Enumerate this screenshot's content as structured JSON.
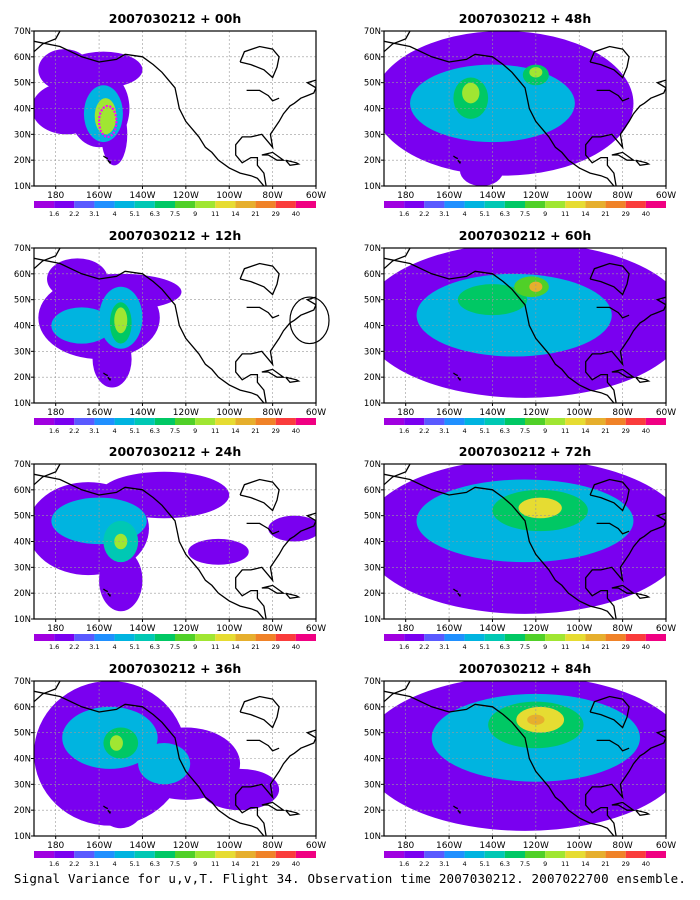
{
  "figure": {
    "caption": "Signal Variance for u,v,T. Flight 34. Observation time 2007030212. 2007022700 ensemble."
  },
  "panels": [
    {
      "title": "2007030212 + 00h",
      "blobs": [
        {
          "lon": -175,
          "lat": 40,
          "lvl": 1,
          "rx": 16,
          "ry": 10
        },
        {
          "lon": -160,
          "lat": 40,
          "lvl": 1,
          "rx": 14,
          "ry": 15
        },
        {
          "lon": -158,
          "lat": 55,
          "lvl": 1,
          "rx": 18,
          "ry": 7
        },
        {
          "lon": -176,
          "lat": 55,
          "lvl": 1,
          "rx": 12,
          "ry": 8
        },
        {
          "lon": -153,
          "lat": 30,
          "lvl": 1,
          "rx": 6,
          "ry": 12
        },
        {
          "lon": -158,
          "lat": 38,
          "lvl": 4,
          "rx": 9,
          "ry": 11
        },
        {
          "lon": -157,
          "lat": 37,
          "lvl": 8,
          "rx": 5,
          "ry": 7
        }
      ],
      "marker": {
        "type": "ellipse",
        "lon": -156,
        "lat": 35,
        "rx": 4,
        "ry": 6,
        "color": "#ff00ff",
        "dashed": true
      }
    },
    {
      "title": "2007030212 + 12h",
      "blobs": [
        {
          "lon": -160,
          "lat": 43,
          "lvl": 1,
          "rx": 28,
          "ry": 16
        },
        {
          "lon": -150,
          "lat": 53,
          "lvl": 1,
          "rx": 28,
          "ry": 7
        },
        {
          "lon": -154,
          "lat": 27,
          "lvl": 1,
          "rx": 9,
          "ry": 11
        },
        {
          "lon": -170,
          "lat": 58,
          "lvl": 1,
          "rx": 14,
          "ry": 8
        },
        {
          "lon": -168,
          "lat": 40,
          "lvl": 4,
          "rx": 14,
          "ry": 7
        },
        {
          "lon": -150,
          "lat": 43,
          "lvl": 4,
          "rx": 10,
          "ry": 12
        },
        {
          "lon": -150,
          "lat": 41,
          "lvl": 6,
          "rx": 5,
          "ry": 8
        },
        {
          "lon": -150,
          "lat": 42,
          "lvl": 8,
          "rx": 3,
          "ry": 5
        }
      ],
      "marker": {
        "type": "circle",
        "lon": -63,
        "lat": 42,
        "rx": 9,
        "ry": 9,
        "color": "#000000",
        "dashed": false
      }
    },
    {
      "title": "2007030212 + 24h",
      "blobs": [
        {
          "lon": -165,
          "lat": 45,
          "lvl": 1,
          "rx": 28,
          "ry": 18
        },
        {
          "lon": -130,
          "lat": 58,
          "lvl": 1,
          "rx": 30,
          "ry": 9
        },
        {
          "lon": -150,
          "lat": 25,
          "lvl": 1,
          "rx": 10,
          "ry": 12
        },
        {
          "lon": -70,
          "lat": 45,
          "lvl": 1,
          "rx": 12,
          "ry": 5
        },
        {
          "lon": -105,
          "lat": 36,
          "lvl": 1,
          "rx": 14,
          "ry": 5
        },
        {
          "lon": -160,
          "lat": 48,
          "lvl": 4,
          "rx": 22,
          "ry": 9
        },
        {
          "lon": -150,
          "lat": 40,
          "lvl": 5,
          "rx": 8,
          "ry": 8
        },
        {
          "lon": -150,
          "lat": 40,
          "lvl": 8,
          "rx": 3,
          "ry": 3
        }
      ],
      "marker": null
    },
    {
      "title": "2007030212 + 36h",
      "blobs": [
        {
          "lon": -155,
          "lat": 42,
          "lvl": 1,
          "rx": 35,
          "ry": 28
        },
        {
          "lon": -120,
          "lat": 38,
          "lvl": 1,
          "rx": 25,
          "ry": 14
        },
        {
          "lon": -95,
          "lat": 28,
          "lvl": 1,
          "rx": 18,
          "ry": 8
        },
        {
          "lon": -150,
          "lat": 25,
          "lvl": 1,
          "rx": 12,
          "ry": 12
        },
        {
          "lon": -155,
          "lat": 48,
          "lvl": 4,
          "rx": 22,
          "ry": 12
        },
        {
          "lon": -130,
          "lat": 38,
          "lvl": 4,
          "rx": 12,
          "ry": 8
        },
        {
          "lon": -150,
          "lat": 46,
          "lvl": 6,
          "rx": 8,
          "ry": 6
        },
        {
          "lon": -152,
          "lat": 46,
          "lvl": 8,
          "rx": 3,
          "ry": 3
        }
      ],
      "marker": null
    },
    {
      "title": "2007030212 + 48h",
      "blobs": [
        {
          "lon": -135,
          "lat": 42,
          "lvl": 1,
          "rx": 60,
          "ry": 28
        },
        {
          "lon": -145,
          "lat": 16,
          "lvl": 1,
          "rx": 10,
          "ry": 6
        },
        {
          "lon": -140,
          "lat": 42,
          "lvl": 4,
          "rx": 38,
          "ry": 15
        },
        {
          "lon": -150,
          "lat": 44,
          "lvl": 6,
          "rx": 8,
          "ry": 8
        },
        {
          "lon": -120,
          "lat": 53,
          "lvl": 6,
          "rx": 6,
          "ry": 4
        },
        {
          "lon": -150,
          "lat": 46,
          "lvl": 8,
          "rx": 4,
          "ry": 4
        },
        {
          "lon": -120,
          "lat": 54,
          "lvl": 8,
          "rx": 3,
          "ry": 2
        }
      ],
      "marker": null
    },
    {
      "title": "2007030212 + 60h",
      "blobs": [
        {
          "lon": -125,
          "lat": 42,
          "lvl": 1,
          "rx": 75,
          "ry": 30
        },
        {
          "lon": -130,
          "lat": 44,
          "lvl": 4,
          "rx": 45,
          "ry": 16
        },
        {
          "lon": -140,
          "lat": 50,
          "lvl": 6,
          "rx": 16,
          "ry": 6
        },
        {
          "lon": -122,
          "lat": 55,
          "lvl": 7,
          "rx": 8,
          "ry": 4
        },
        {
          "lon": -120,
          "lat": 55,
          "lvl": 10,
          "rx": 3,
          "ry": 2
        }
      ],
      "marker": null
    },
    {
      "title": "2007030212 + 72h",
      "blobs": [
        {
          "lon": -125,
          "lat": 42,
          "lvl": 1,
          "rx": 75,
          "ry": 30
        },
        {
          "lon": -125,
          "lat": 48,
          "lvl": 4,
          "rx": 50,
          "ry": 16
        },
        {
          "lon": -118,
          "lat": 52,
          "lvl": 6,
          "rx": 22,
          "ry": 8
        },
        {
          "lon": -118,
          "lat": 53,
          "lvl": 9,
          "rx": 10,
          "ry": 4
        }
      ],
      "marker": null
    },
    {
      "title": "2007030212 + 84h",
      "blobs": [
        {
          "lon": -125,
          "lat": 42,
          "lvl": 1,
          "rx": 75,
          "ry": 30
        },
        {
          "lon": -120,
          "lat": 48,
          "lvl": 4,
          "rx": 48,
          "ry": 17
        },
        {
          "lon": -120,
          "lat": 53,
          "lvl": 6,
          "rx": 22,
          "ry": 9
        },
        {
          "lon": -118,
          "lat": 55,
          "lvl": 9,
          "rx": 11,
          "ry": 5
        },
        {
          "lon": -120,
          "lat": 55,
          "lvl": 10,
          "rx": 4,
          "ry": 2
        }
      ],
      "marker": null
    }
  ],
  "axes": {
    "lon_range": [
      -190,
      -60
    ],
    "lat_range": [
      10,
      70
    ],
    "x_ticks": [
      {
        "lon": -180,
        "label": "180"
      },
      {
        "lon": -160,
        "label": "160W"
      },
      {
        "lon": -140,
        "label": "140W"
      },
      {
        "lon": -120,
        "label": "120W"
      },
      {
        "lon": -100,
        "label": "100W"
      },
      {
        "lon": -80,
        "label": "80W"
      },
      {
        "lon": -60,
        "label": "60W"
      }
    ],
    "y_ticks": [
      {
        "lat": 10,
        "label": "10N"
      },
      {
        "lat": 20,
        "label": "20N"
      },
      {
        "lat": 30,
        "label": "30N"
      },
      {
        "lat": 40,
        "label": "40N"
      },
      {
        "lat": 50,
        "label": "50N"
      },
      {
        "lat": 60,
        "label": "60N"
      },
      {
        "lat": 70,
        "label": "70N"
      }
    ]
  },
  "colorbar": {
    "labels": [
      "1.6",
      "2.2",
      "3.1",
      "4",
      "5.1",
      "6.3",
      "7.5",
      "9",
      "11",
      "14",
      "21",
      "29",
      "40"
    ],
    "colors": [
      "#a000e0",
      "#7a00f0",
      "#5a5aff",
      "#2090ff",
      "#00b4e0",
      "#00c8b4",
      "#00c864",
      "#50d028",
      "#a0e632",
      "#e6dc32",
      "#e6af2d",
      "#f08228",
      "#fa3c3c",
      "#f00082"
    ]
  },
  "map_colors": {
    "ocean": "#ffffff",
    "coast": "#000000",
    "grid": "#999999"
  }
}
